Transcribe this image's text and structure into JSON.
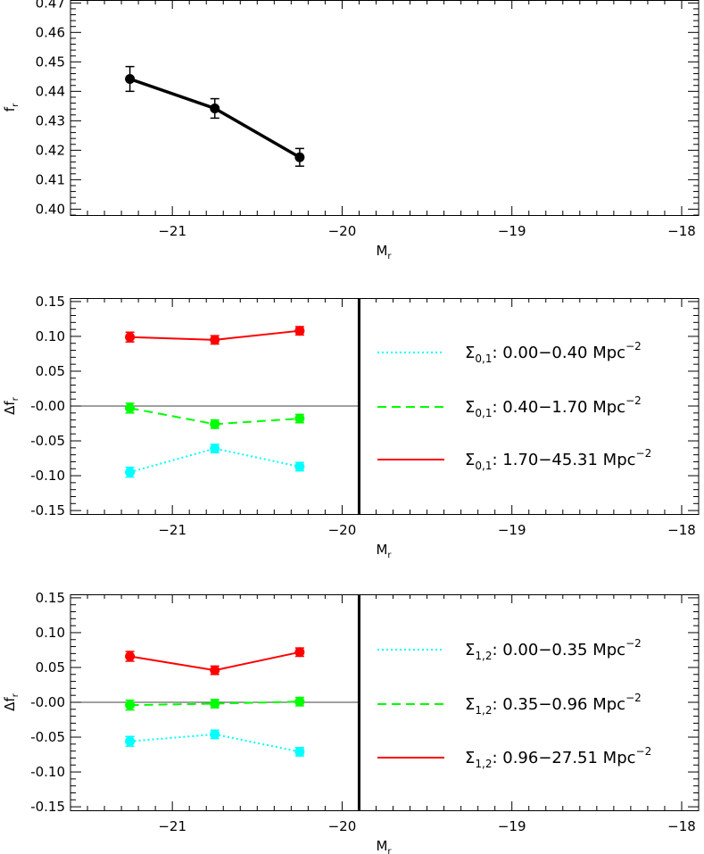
{
  "chart_data": [
    {
      "type": "line",
      "panel": "top",
      "xlabel": "M",
      "xlabel_sub": "r",
      "ylabel": "f",
      "ylabel_sub": "r",
      "xlim": [
        -21.6,
        -17.9
      ],
      "ylim": [
        0.398,
        0.471
      ],
      "xticks": [
        -21,
        -20,
        -19,
        -18
      ],
      "xtick_labels": [
        "−21",
        "−20",
        "−19",
        "−18"
      ],
      "yticks": [
        0.4,
        0.41,
        0.42,
        0.43,
        0.44,
        0.45,
        0.46,
        0.47
      ],
      "ytick_labels": [
        "0.40",
        "0.41",
        "0.42",
        "0.43",
        "0.44",
        "0.45",
        "0.46",
        "0.47"
      ],
      "series": [
        {
          "name": "f_r",
          "color": "#000000",
          "style": "solid",
          "x": [
            -21.25,
            -20.75,
            -20.25
          ],
          "y": [
            0.4442,
            0.4342,
            0.4176
          ],
          "err": [
            0.0042,
            0.0033,
            0.003
          ]
        }
      ]
    },
    {
      "type": "line",
      "panel": "middle",
      "xlabel": "M",
      "xlabel_sub": "r",
      "ylabel": "Δf",
      "ylabel_sub": "r",
      "xlim": [
        -21.6,
        -17.9
      ],
      "ylim": [
        -0.155,
        0.155
      ],
      "xticks": [
        -21,
        -20,
        -19,
        -18
      ],
      "xtick_labels": [
        "−21",
        "−20",
        "−19",
        "−18"
      ],
      "yticks": [
        -0.15,
        -0.1,
        -0.05,
        0.0,
        0.05,
        0.1,
        0.15
      ],
      "ytick_labels": [
        "-0.15",
        "-0.10",
        "-0.05",
        "-0.00",
        "0.05",
        "0.10",
        "0.15"
      ],
      "zero_line": 0,
      "divider_x": -19.9,
      "series": [
        {
          "name": "Σ",
          "sub": "0,1",
          "range": ": 0.00−0.40  Mpc",
          "sup": "−2",
          "color": "#00ffff",
          "style": "dotted",
          "x": [
            -21.25,
            -20.75,
            -20.25
          ],
          "y": [
            -0.095,
            -0.061,
            -0.087
          ],
          "err": [
            0.007,
            0.006,
            0.006
          ]
        },
        {
          "name": "Σ",
          "sub": "0,1",
          "range": ": 0.40−1.70  Mpc",
          "sup": "−2",
          "color": "#00ff00",
          "style": "dashed",
          "x": [
            -21.25,
            -20.75,
            -20.25
          ],
          "y": [
            -0.003,
            -0.026,
            -0.018
          ],
          "err": [
            0.007,
            0.006,
            0.006
          ]
        },
        {
          "name": "Σ",
          "sub": "0,1",
          "range": ": 1.70−45.31  Mpc",
          "sup": "−2",
          "color": "#ff0000",
          "style": "solid",
          "x": [
            -21.25,
            -20.75,
            -20.25
          ],
          "y": [
            0.099,
            0.095,
            0.108
          ],
          "err": [
            0.007,
            0.006,
            0.006
          ]
        }
      ]
    },
    {
      "type": "line",
      "panel": "bottom",
      "xlabel": "M",
      "xlabel_sub": "r",
      "ylabel": "Δf",
      "ylabel_sub": "r",
      "xlim": [
        -21.6,
        -17.9
      ],
      "ylim": [
        -0.155,
        0.155
      ],
      "xticks": [
        -21,
        -20,
        -19,
        -18
      ],
      "xtick_labels": [
        "−21",
        "−20",
        "−19",
        "−18"
      ],
      "yticks": [
        -0.15,
        -0.1,
        -0.05,
        0.0,
        0.05,
        0.1,
        0.15
      ],
      "ytick_labels": [
        "-0.15",
        "-0.10",
        "-0.05",
        "-0.00",
        "0.05",
        "0.10",
        "0.15"
      ],
      "zero_line": 0,
      "divider_x": -19.9,
      "series": [
        {
          "name": "Σ",
          "sub": "1,2",
          "range": ": 0.00−0.35  Mpc",
          "sup": "−2",
          "color": "#00ffff",
          "style": "dotted",
          "x": [
            -21.25,
            -20.75,
            -20.25
          ],
          "y": [
            -0.056,
            -0.046,
            -0.071
          ],
          "err": [
            0.007,
            0.006,
            0.006
          ]
        },
        {
          "name": "Σ",
          "sub": "1,2",
          "range": ": 0.35−0.96  Mpc",
          "sup": "−2",
          "color": "#00ff00",
          "style": "dashed",
          "x": [
            -21.25,
            -20.75,
            -20.25
          ],
          "y": [
            -0.004,
            -0.002,
            0.001
          ],
          "err": [
            0.007,
            0.006,
            0.006
          ]
        },
        {
          "name": "Σ",
          "sub": "1,2",
          "range": ": 0.96−27.51  Mpc",
          "sup": "−2",
          "color": "#ff0000",
          "style": "solid",
          "x": [
            -21.25,
            -20.75,
            -20.25
          ],
          "y": [
            0.066,
            0.046,
            0.072
          ],
          "err": [
            0.007,
            0.006,
            0.006
          ]
        }
      ]
    }
  ]
}
